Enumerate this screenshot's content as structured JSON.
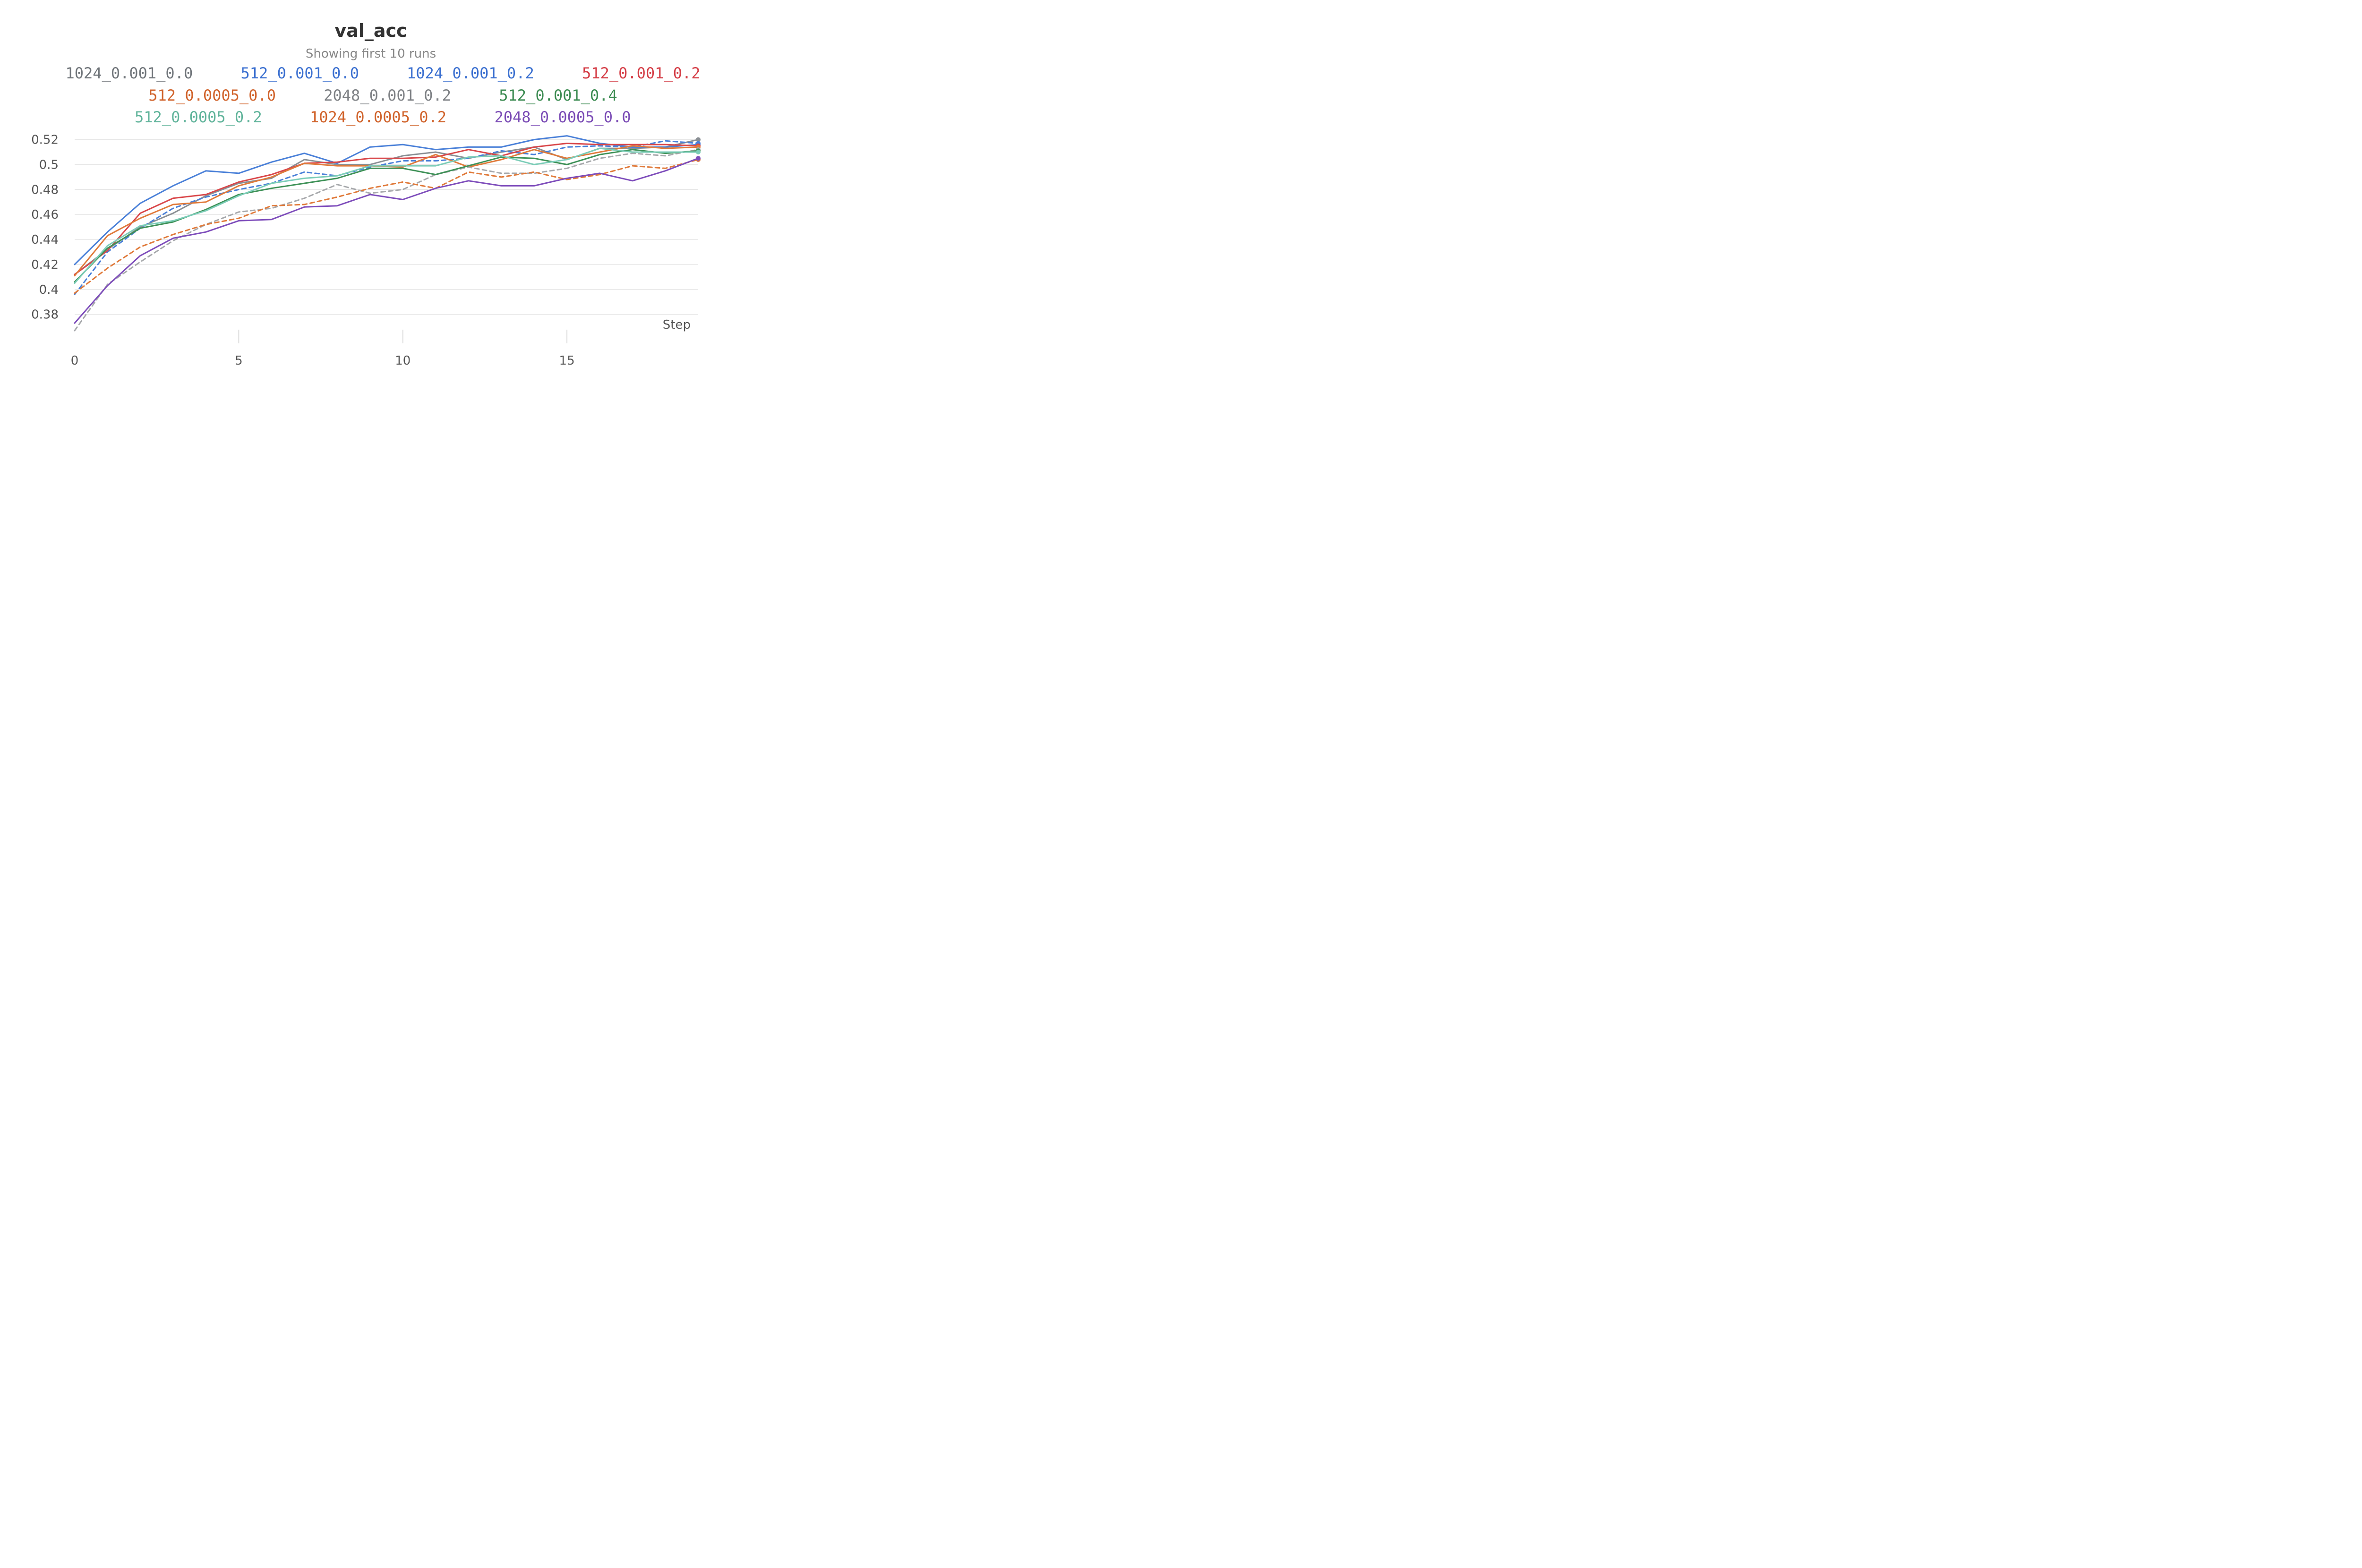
{
  "chart_data": {
    "type": "line",
    "title": "val_acc",
    "subtitle": "Showing first 10 runs",
    "xlabel": "Step",
    "ylabel": "",
    "xlim": [
      0,
      19
    ],
    "ylim": [
      0.367,
      0.524
    ],
    "xticks": [
      0,
      5,
      10,
      15
    ],
    "yticks": [
      0.38,
      0.4,
      0.42,
      0.44,
      0.46,
      0.48,
      0.5,
      0.52
    ],
    "ytick_labels": [
      "0.38",
      "0.4",
      "0.42",
      "0.44",
      "0.46",
      "0.48",
      "0.5",
      "0.52"
    ],
    "grid": true,
    "legend_position": "top",
    "x": [
      0,
      1,
      2,
      3,
      4,
      5,
      6,
      7,
      8,
      9,
      10,
      11,
      12,
      13,
      14,
      15,
      16,
      17,
      18,
      19
    ],
    "series": [
      {
        "name": "1024_0.001_0.0",
        "color": "#8a8f94",
        "dash": false,
        "values": [
          0.412,
          0.432,
          0.45,
          0.461,
          0.475,
          0.485,
          0.489,
          0.504,
          0.5,
          0.5,
          0.507,
          0.51,
          0.505,
          0.51,
          0.514,
          0.504,
          0.513,
          0.513,
          0.514,
          0.52
        ]
      },
      {
        "name": "512_0.001_0.0",
        "color": "#4a80d8",
        "dash": true,
        "values": [
          0.396,
          0.43,
          0.449,
          0.465,
          0.474,
          0.48,
          0.485,
          0.494,
          0.491,
          0.498,
          0.503,
          0.503,
          0.505,
          0.511,
          0.508,
          0.514,
          0.515,
          0.514,
          0.519,
          0.517
        ]
      },
      {
        "name": "1024_0.001_0.2",
        "color": "#4a80d8",
        "dash": false,
        "values": [
          0.42,
          0.446,
          0.469,
          0.483,
          0.495,
          0.493,
          0.502,
          0.509,
          0.501,
          0.514,
          0.516,
          0.512,
          0.514,
          0.514,
          0.52,
          0.523,
          0.517,
          0.514,
          0.514,
          0.516
        ]
      },
      {
        "name": "512_0.001_0.2",
        "color": "#d9474a",
        "dash": false,
        "values": [
          0.412,
          0.431,
          0.461,
          0.473,
          0.476,
          0.486,
          0.492,
          0.501,
          0.502,
          0.505,
          0.505,
          0.506,
          0.512,
          0.507,
          0.514,
          0.517,
          0.516,
          0.516,
          0.516,
          0.515
        ]
      },
      {
        "name": "512_0.0005_0.0",
        "color": "#e07a3a",
        "dash": false,
        "values": [
          0.411,
          0.443,
          0.457,
          0.468,
          0.47,
          0.483,
          0.49,
          0.501,
          0.499,
          0.499,
          0.498,
          0.508,
          0.498,
          0.504,
          0.512,
          0.505,
          0.51,
          0.515,
          0.513,
          0.514
        ]
      },
      {
        "name": "2048_0.001_0.2",
        "color": "#a7a9ac",
        "dash": true,
        "values": [
          0.367,
          0.404,
          0.422,
          0.439,
          0.452,
          0.462,
          0.465,
          0.473,
          0.484,
          0.477,
          0.48,
          0.492,
          0.498,
          0.493,
          0.493,
          0.497,
          0.505,
          0.509,
          0.507,
          0.512
        ]
      },
      {
        "name": "512_0.001_0.4",
        "color": "#3e9157",
        "dash": false,
        "values": [
          0.406,
          0.433,
          0.449,
          0.454,
          0.464,
          0.476,
          0.481,
          0.485,
          0.489,
          0.497,
          0.497,
          0.492,
          0.499,
          0.506,
          0.505,
          0.5,
          0.508,
          0.512,
          0.509,
          0.511
        ]
      },
      {
        "name": "512_0.0005_0.2",
        "color": "#7ccdb8",
        "dash": false,
        "values": [
          0.405,
          0.435,
          0.451,
          0.455,
          0.463,
          0.475,
          0.485,
          0.489,
          0.491,
          0.499,
          0.499,
          0.499,
          0.506,
          0.507,
          0.5,
          0.504,
          0.513,
          0.51,
          0.51,
          0.51
        ]
      },
      {
        "name": "1024_0.0005_0.2",
        "color": "#e07a3a",
        "dash": true,
        "values": [
          0.397,
          0.417,
          0.434,
          0.444,
          0.452,
          0.457,
          0.467,
          0.468,
          0.474,
          0.481,
          0.486,
          0.481,
          0.494,
          0.49,
          0.494,
          0.488,
          0.492,
          0.499,
          0.497,
          0.504
        ]
      },
      {
        "name": "2048_0.0005_0.0",
        "color": "#7e4dbb",
        "dash": false,
        "values": [
          0.373,
          0.403,
          0.427,
          0.441,
          0.446,
          0.455,
          0.456,
          0.466,
          0.467,
          0.476,
          0.472,
          0.481,
          0.487,
          0.483,
          0.483,
          0.489,
          0.493,
          0.487,
          0.495,
          0.505
        ]
      }
    ]
  },
  "legend_colors": [
    "#6f7479",
    "#3a6fd0",
    "#3a6fd0",
    "#d43c45",
    "#d0622a",
    "#7d8084",
    "#3a8a50",
    "#5fb39a",
    "#d0622a",
    "#7a4bb5"
  ]
}
